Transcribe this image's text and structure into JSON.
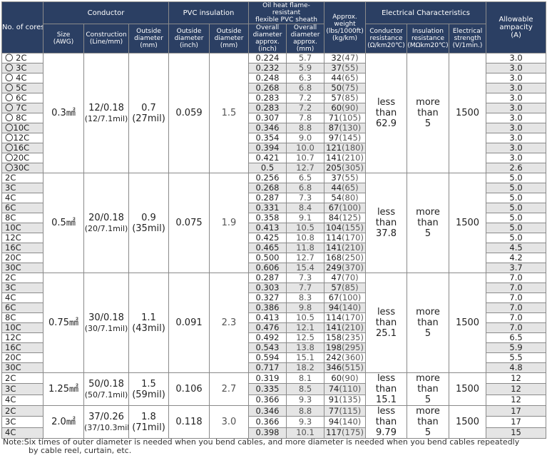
{
  "headers": {
    "cores": "No. of cores",
    "conductor": "Conductor",
    "size": "Size\n(AWG)",
    "construction": "Construction\n(Line/mm)",
    "cond_od": "Outside\ndiameter\n(mm)",
    "pvc": "PVC insulation",
    "pvc_od_inch": "Outside\ndiameter\n(inch)",
    "pvc_od_mm": "Outside\ndiameter\n(mm)",
    "sheath": "Oil heat flame-resistant\nflexible PVC sheath",
    "sheath_od_inch": "Overall\ndiameter\napprox. (inch)",
    "sheath_od_mm": "Overall\ndiameter\napprox. (mm)",
    "weight": "Approx.\nweight\n(lbs/1000ft)\n(kg/km)",
    "electrical": "Electrical Characteristics",
    "cond_res": "Conductor\nresistance\n(Ω/km20℃)",
    "ins_res": "Insulation\nresistance\n(MΩkm20℃)",
    "strength": "Electrical\nstrength\n(V/1min.)",
    "ampacity": "Allowable\nampacity\n(A)"
  },
  "groups": [
    {
      "size": "0.3㎟",
      "construction": "12/0.18",
      "construction_mil": "(12/7.1mil)",
      "cond_od": "0.7",
      "cond_od_mil": "(27mil)",
      "pvc_inch": "0.059",
      "pvc_mm": "1.5",
      "cond_res": "less than\n62.9",
      "ins_res": "more than\n5",
      "strength": "1500",
      "rows": [
        {
          "core": "〇 2C",
          "inch": "0.224",
          "mm": "5.7",
          "w": "32",
          "wp": "(47)",
          "a": "3.0"
        },
        {
          "core": "〇 3C",
          "inch": "0.232",
          "mm": "5.9",
          "w": "37",
          "wp": "(55)",
          "a": "3.0"
        },
        {
          "core": "〇 4C",
          "inch": "0.248",
          "mm": "6.3",
          "w": "44",
          "wp": "(65)",
          "a": "3.0"
        },
        {
          "core": "〇 5C",
          "inch": "0.268",
          "mm": "6.8",
          "w": "50",
          "wp": "(75)",
          "a": "3.0"
        },
        {
          "core": "〇 6C",
          "inch": "0.283",
          "mm": "7.2",
          "w": "57",
          "wp": "(85)",
          "a": "3.0"
        },
        {
          "core": "〇 7C",
          "inch": "0.283",
          "mm": "7.2",
          "w": "60",
          "wp": "(90)",
          "a": "3.0"
        },
        {
          "core": "〇 8C",
          "inch": "0.307",
          "mm": "7.8",
          "w": "71",
          "wp": "(105)",
          "a": "3.0"
        },
        {
          "core": "〇10C",
          "inch": "0.346",
          "mm": "8.8",
          "w": "87",
          "wp": "(130)",
          "a": "3.0"
        },
        {
          "core": "〇12C",
          "inch": "0.354",
          "mm": "9.0",
          "w": "97",
          "wp": "(145)",
          "a": "3.0"
        },
        {
          "core": "〇16C",
          "inch": "0.394",
          "mm": "10.0",
          "w": "121",
          "wp": "(180)",
          "a": "3.0"
        },
        {
          "core": "〇20C",
          "inch": "0.421",
          "mm": "10.7",
          "w": "141",
          "wp": "(210)",
          "a": "3.0"
        },
        {
          "core": "〇30C",
          "inch": "0.5",
          "mm": "12.7",
          "w": "205",
          "wp": "(305)",
          "a": "2.6"
        }
      ]
    },
    {
      "size": "0.5㎟",
      "construction": "20/0.18",
      "construction_mil": "(20/7.1mil)",
      "cond_od": "0.9",
      "cond_od_mil": "(35mil)",
      "pvc_inch": "0.075",
      "pvc_mm": "1.9",
      "cond_res": "less than\n37.8",
      "ins_res": "more than\n5",
      "strength": "1500",
      "rows": [
        {
          "core": "2C",
          "inch": "0.256",
          "mm": "6.5",
          "w": "37",
          "wp": "(55)",
          "a": "5.0"
        },
        {
          "core": "3C",
          "inch": "0.268",
          "mm": "6.8",
          "w": "44",
          "wp": "(65)",
          "a": "5.0"
        },
        {
          "core": "4C",
          "inch": "0.287",
          "mm": "7.3",
          "w": "54",
          "wp": "(80)",
          "a": "5.0"
        },
        {
          "core": "6C",
          "inch": "0.331",
          "mm": "8.4",
          "w": "67",
          "wp": "(100)",
          "a": "5.0"
        },
        {
          "core": "8C",
          "inch": "0.358",
          "mm": "9.1",
          "w": "84",
          "wp": "(125)",
          "a": "5.0"
        },
        {
          "core": "10C",
          "inch": "0.413",
          "mm": "10.5",
          "w": "104",
          "wp": "(155)",
          "a": "5.0"
        },
        {
          "core": "12C",
          "inch": "0.425",
          "mm": "10.8",
          "w": "114",
          "wp": "(170)",
          "a": "5.0"
        },
        {
          "core": "16C",
          "inch": "0.465",
          "mm": "11.8",
          "w": "141",
          "wp": "(210)",
          "a": "4.5"
        },
        {
          "core": "20C",
          "inch": "0.500",
          "mm": "12.7",
          "w": "168",
          "wp": "(250)",
          "a": "4.2"
        },
        {
          "core": "30C",
          "inch": "0.606",
          "mm": "15.4",
          "w": "249",
          "wp": "(370)",
          "a": "3.7"
        }
      ]
    },
    {
      "size": "0.75㎟",
      "construction": "30/0.18",
      "construction_mil": "(30/7.1mil)",
      "cond_od": "1.1",
      "cond_od_mil": "(43mil)",
      "pvc_inch": "0.091",
      "pvc_mm": "2.3",
      "cond_res": "less than\n25.1",
      "ins_res": "more than\n5",
      "strength": "1500",
      "rows": [
        {
          "core": "2C",
          "inch": "0.287",
          "mm": "7.3",
          "w": "47",
          "wp": "(70)",
          "a": "7.0"
        },
        {
          "core": "3C",
          "inch": "0.303",
          "mm": "7.7",
          "w": "57",
          "wp": "(85)",
          "a": "7.0"
        },
        {
          "core": "4C",
          "inch": "0.327",
          "mm": "8.3",
          "w": "67",
          "wp": "(100)",
          "a": "7.0"
        },
        {
          "core": "6C",
          "inch": "0.386",
          "mm": "9.8",
          "w": "94",
          "wp": "(140)",
          "a": "7.0"
        },
        {
          "core": "8C",
          "inch": "0.413",
          "mm": "10.5",
          "w": "114",
          "wp": "(170)",
          "a": "7.0"
        },
        {
          "core": "10C",
          "inch": "0.476",
          "mm": "12.1",
          "w": "141",
          "wp": "(210)",
          "a": "7.0"
        },
        {
          "core": "12C",
          "inch": "0.492",
          "mm": "12.5",
          "w": "158",
          "wp": "(235)",
          "a": "6.5"
        },
        {
          "core": "16C",
          "inch": "0.543",
          "mm": "13.8",
          "w": "198",
          "wp": "(295)",
          "a": "5.9"
        },
        {
          "core": "20C",
          "inch": "0.594",
          "mm": "15.1",
          "w": "242",
          "wp": "(360)",
          "a": "5.5"
        },
        {
          "core": "30C",
          "inch": "0.717",
          "mm": "18.2",
          "w": "346",
          "wp": "(515)",
          "a": "4.8"
        }
      ]
    },
    {
      "size": "1.25㎟",
      "construction": "50/0.18",
      "construction_mil": "(50/7.1mil)",
      "cond_od": "1.5",
      "cond_od_mil": "(59mil)",
      "pvc_inch": "0.106",
      "pvc_mm": "2.7",
      "cond_res": "less than\n15.1",
      "ins_res": "more than\n5",
      "strength": "1500",
      "rows": [
        {
          "core": "2C",
          "inch": "0.319",
          "mm": "8.1",
          "w": "60",
          "wp": "(90)",
          "a": "12"
        },
        {
          "core": "3C",
          "inch": "0.335",
          "mm": "8.5",
          "w": "74",
          "wp": "(110)",
          "a": "12"
        },
        {
          "core": "4C",
          "inch": "0.366",
          "mm": "9.3",
          "w": "91",
          "wp": "(135)",
          "a": "12"
        }
      ]
    },
    {
      "size": "2.0㎟",
      "construction": "37/0.26",
      "construction_mil": "(37/10.3mil)",
      "cond_od": "1.8",
      "cond_od_mil": "(71mil)",
      "pvc_inch": "0.118",
      "pvc_mm": "3.0",
      "cond_res": "less than\n9.79",
      "ins_res": "more than\n5",
      "strength": "1500",
      "rows": [
        {
          "core": "2C",
          "inch": "0.346",
          "mm": "8.8",
          "w": "77",
          "wp": "(115)",
          "a": "17"
        },
        {
          "core": "3C",
          "inch": "0.366",
          "mm": "9.3",
          "w": "94",
          "wp": "(140)",
          "a": "17"
        },
        {
          "core": "4C",
          "inch": "0.398",
          "mm": "10.1",
          "w": "117",
          "wp": "(175)",
          "a": "15"
        }
      ]
    }
  ],
  "note_line1": "Note:Six times of outer diameter is needed when you bend cables, and more diameter is needed when you bend cables repeatedly",
  "note_line2": "by cable reel, curtain, etc."
}
